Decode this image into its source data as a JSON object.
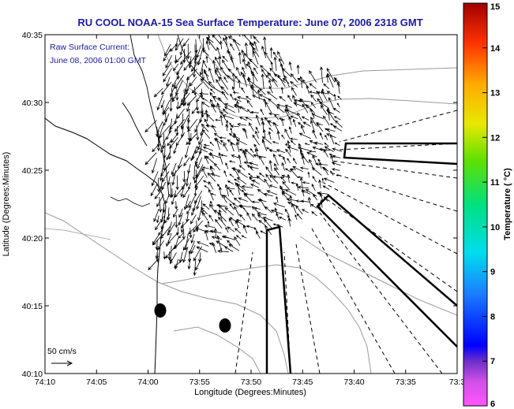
{
  "chart_data": {
    "type": "vector-field-map",
    "title": "RU COOL  NOAA-15  Sea Surface Temperature:  June 07, 2006 2318 GMT",
    "xlabel": "Longitude (Degrees:Minutes)",
    "ylabel": "Latitude (Degrees:Minutes)",
    "x_ticks": [
      "74:10",
      "74:05",
      "74:00",
      "73:55",
      "73:50",
      "73:45",
      "73:40",
      "73:35",
      "73:3"
    ],
    "y_ticks": [
      "40:10",
      "40:15",
      "40:20",
      "40:25",
      "40:30",
      "40:35"
    ],
    "annotation_lines": [
      "Raw Surface Current:",
      "June 08, 2006 01:00 GMT"
    ],
    "scale_label": "50 cm/s",
    "colorbar": {
      "label": "Temperature ( °C)",
      "ticks": [
        "6",
        "7",
        "8",
        "9",
        "10",
        "11",
        "12",
        "13",
        "14",
        "15"
      ],
      "range": [
        6,
        15
      ]
    },
    "line_color": "#000000",
    "title_color": "#1a1aa8"
  }
}
